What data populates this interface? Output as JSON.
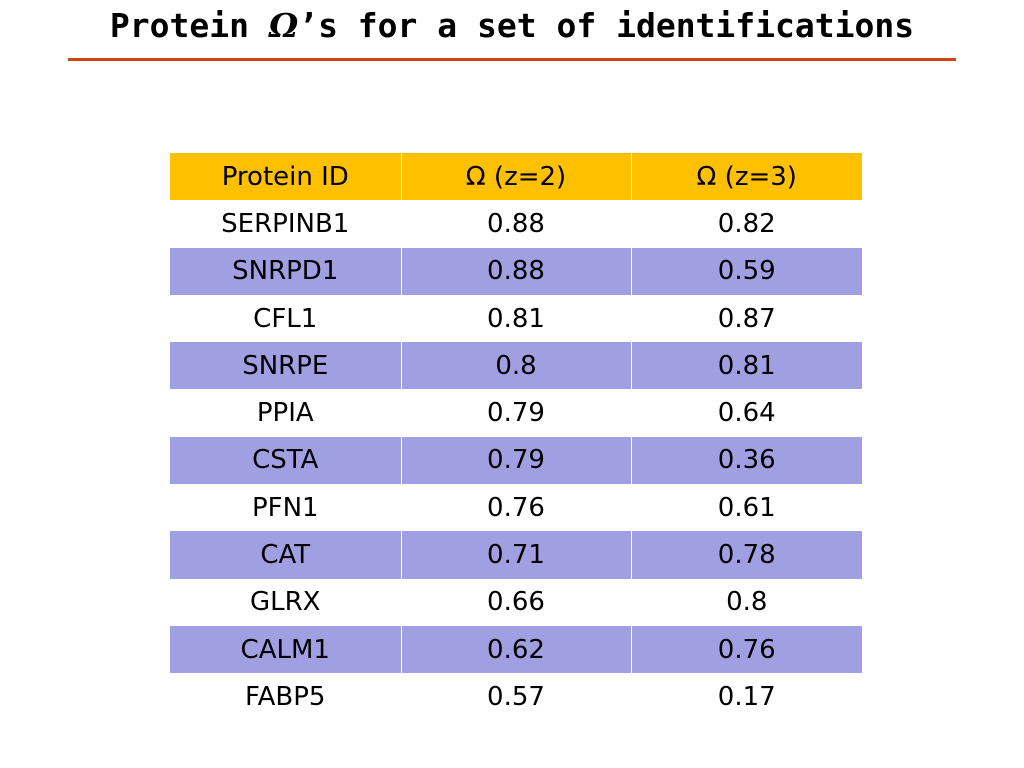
{
  "slide": {
    "title_prefix": "Protein ",
    "title_symbol": "Ω",
    "title_suffix": "’s for a set of identifications",
    "accent_color": "#cc4411"
  },
  "table": {
    "header_color": "#ffc000",
    "stripe_color": "#9f9fe2",
    "headers": [
      "Protein ID",
      "Ω (z=2)",
      "Ω (z=3)"
    ],
    "rows": [
      [
        "SERPINB1",
        "0.88",
        "0.82"
      ],
      [
        "SNRPD1",
        "0.88",
        "0.59"
      ],
      [
        "CFL1",
        "0.81",
        "0.87"
      ],
      [
        "SNRPE",
        "0.8",
        "0.81"
      ],
      [
        "PPIA",
        "0.79",
        "0.64"
      ],
      [
        "CSTA",
        "0.79",
        "0.36"
      ],
      [
        "PFN1",
        "0.76",
        "0.61"
      ],
      [
        "CAT",
        "0.71",
        "0.78"
      ],
      [
        "GLRX",
        "0.66",
        "0.8"
      ],
      [
        "CALM1",
        "0.62",
        "0.76"
      ],
      [
        "FABP5",
        "0.57",
        "0.17"
      ]
    ]
  }
}
